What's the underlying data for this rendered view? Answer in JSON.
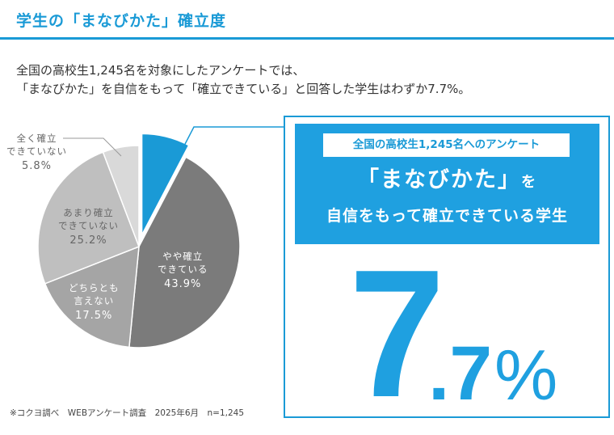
{
  "header": {
    "title": "学生の「まなびかた」確立度"
  },
  "lead": {
    "line1": "全国の高校生1,245名を対象にしたアンケートでは、",
    "line2": "「まなびかた」を自信をもって「確立できている」と回答した学生はわずか7.7%。"
  },
  "chart_data": {
    "type": "pie",
    "start": "top",
    "direction": "clockwise",
    "slices": [
      {
        "label": "確立できている",
        "value": 7.7,
        "color": "#1a9ad6",
        "exploded": true
      },
      {
        "label": "やや確立できている",
        "line1": "やや確立",
        "line2": "できている",
        "pct": "43.9%",
        "value": 43.9,
        "color": "#7b7b7b"
      },
      {
        "label": "どちらとも言えない",
        "line1": "どちらとも",
        "line2": "言えない",
        "pct": "17.5%",
        "value": 17.5,
        "color": "#a5a5a5"
      },
      {
        "label": "あまり確立できていない",
        "line1": "あまり確立",
        "line2": "できていない",
        "pct": "25.2%",
        "value": 25.2,
        "color": "#bfbfbf"
      },
      {
        "label": "全く確立できていない",
        "line1": "全く確立",
        "line2": "できていない",
        "pct": "5.8%",
        "value": 5.8,
        "color": "#d9d9d9"
      }
    ]
  },
  "panel": {
    "pill": "全国の高校生1,245名へのアンケート",
    "heading_main": "「まなびかた」",
    "heading_particle": "を",
    "heading_line2": "自信をもって確立できている学生",
    "big_int": "7",
    "big_dec": ".7",
    "big_pct": "%"
  },
  "footnote": "※コクヨ調べ　WEBアンケート調査　2025年6月　n=1,245"
}
